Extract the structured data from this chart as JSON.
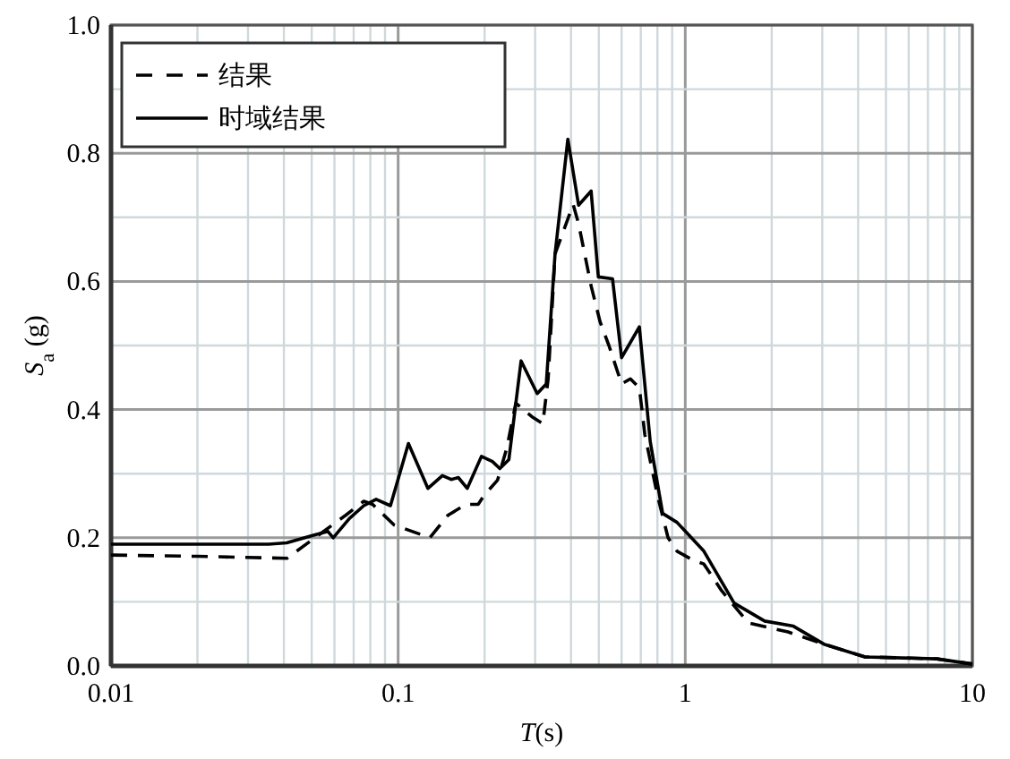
{
  "chart_data": {
    "type": "line",
    "xlabel": "*T*(s)",
    "ylabel": "*S*$_{a}$ (g)",
    "log": "x",
    "xlim": [
      0.01,
      10
    ],
    "xticks": [
      0.01,
      0.1,
      1,
      10
    ],
    "ylim": [
      0,
      1
    ],
    "yticks": [
      {
        "value": 0,
        "label": "0.0"
      },
      0.2,
      0.4,
      0.6,
      0.8,
      {
        "value": 1,
        "label": "1.0"
      }
    ],
    "grid": true,
    "legend": "top left",
    "series": [
      {
        "name": "结果",
        "color": "#000000",
        "line_style": "dashed",
        "x": [
          0.01,
          0.02,
          0.041,
          0.0656,
          0.0759,
          0.0815,
          0.0968,
          0.129,
          0.149,
          0.172,
          0.19,
          0.199,
          0.222,
          0.239,
          0.257,
          0.292,
          0.319,
          0.333,
          0.352,
          0.407,
          0.425,
          0.47,
          0.505,
          0.542,
          0.6,
          0.644,
          0.692,
          0.723,
          0.8,
          0.871,
          0.936,
          1.064,
          1.161,
          1.34,
          1.66,
          2.28,
          3.04,
          4.23,
          7.52,
          10
        ],
        "values": [
          0.173,
          0.171,
          0.168,
          0.235,
          0.257,
          0.252,
          0.22,
          0.2,
          0.235,
          0.252,
          0.252,
          0.266,
          0.29,
          0.34,
          0.41,
          0.389,
          0.378,
          0.448,
          0.643,
          0.72,
          0.69,
          0.593,
          0.537,
          0.5,
          0.44,
          0.448,
          0.434,
          0.361,
          0.266,
          0.2,
          0.179,
          0.165,
          0.159,
          0.117,
          0.067,
          0.053,
          0.034,
          0.014,
          0.011,
          0.003
        ]
      },
      {
        "name": "时域结果",
        "color": "#000000",
        "line_style": "solid",
        "x": [
          0.01,
          0.0354,
          0.0409,
          0.0507,
          0.0569,
          0.0594,
          0.0676,
          0.0759,
          0.0838,
          0.094,
          0.1086,
          0.127,
          0.1426,
          0.153,
          0.162,
          0.174,
          0.195,
          0.213,
          0.226,
          0.243,
          0.268,
          0.305,
          0.328,
          0.352,
          0.39,
          0.425,
          0.47,
          0.498,
          0.558,
          0.6,
          0.692,
          0.755,
          0.834,
          0.936,
          1.161,
          1.48,
          1.89,
          2.38,
          3.04,
          4.23,
          7.52,
          10
        ],
        "values": [
          0.19,
          0.19,
          0.192,
          0.204,
          0.21,
          0.2,
          0.23,
          0.25,
          0.26,
          0.25,
          0.347,
          0.277,
          0.297,
          0.291,
          0.294,
          0.277,
          0.327,
          0.319,
          0.308,
          0.322,
          0.476,
          0.425,
          0.44,
          0.643,
          0.822,
          0.719,
          0.741,
          0.607,
          0.604,
          0.481,
          0.529,
          0.35,
          0.238,
          0.224,
          0.179,
          0.098,
          0.07,
          0.062,
          0.034,
          0.014,
          0.011,
          0.003
        ]
      }
    ]
  }
}
